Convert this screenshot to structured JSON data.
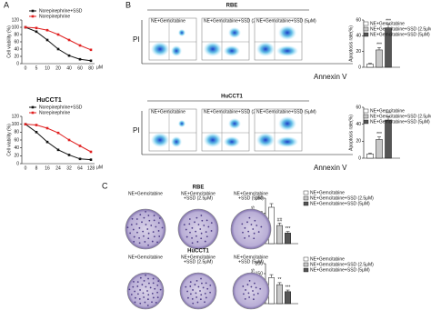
{
  "panels": [
    "A",
    "B",
    "C"
  ],
  "chart_data": [
    {
      "type": "line",
      "y_label": "Cell viability (%)",
      "x_label": "μM",
      "categories": [
        "0",
        "5",
        "10",
        "20",
        "40",
        "60",
        "80"
      ],
      "series": [
        {
          "name": "Norepinephrine+SSD",
          "color": "#111111",
          "values": [
            100,
            88,
            65,
            40,
            22,
            12,
            8
          ]
        },
        {
          "name": "Norepinephrine",
          "color": "#e02020",
          "values": [
            100,
            98,
            92,
            80,
            65,
            50,
            38
          ]
        }
      ],
      "ylim": [
        0,
        120
      ],
      "yticks": [
        0,
        20,
        40,
        60,
        80,
        100,
        120
      ],
      "legend": "top-right"
    },
    {
      "type": "line",
      "title": "HuCCT1",
      "y_label": "Cell viability (%)",
      "x_label": "μM",
      "categories": [
        "0",
        "8",
        "16",
        "24",
        "32",
        "64",
        "128"
      ],
      "series": [
        {
          "name": "Norepinephrine+SSD",
          "color": "#111111",
          "values": [
            100,
            80,
            55,
            35,
            22,
            12,
            10
          ]
        },
        {
          "name": "Norepinephrine",
          "color": "#e02020",
          "values": [
            100,
            98,
            90,
            78,
            60,
            45,
            30
          ]
        }
      ],
      "ylim": [
        0,
        120
      ],
      "yticks": [
        0,
        20,
        40,
        60,
        80,
        100,
        120
      ],
      "legend": "top-right"
    },
    {
      "type": "bar",
      "y_label": "Apoptosis rate(%)",
      "categories": [
        null
      ],
      "series": [
        {
          "name": "NE+Gemcitabine",
          "color": "#ffffff",
          "values": [
            4
          ],
          "errors": [
            1
          ]
        },
        {
          "name": "NE+Gemcitabine+SSD (2.5μM)",
          "color": "#c8c8c8",
          "values": [
            22
          ],
          "errors": [
            3
          ],
          "significance": "***"
        },
        {
          "name": "NE+Gemcitabine+SSD (5μM)",
          "color": "#555555",
          "values": [
            50
          ],
          "errors": [
            5
          ],
          "significance": "***"
        }
      ],
      "ylim": [
        0,
        60
      ],
      "yticks": [
        0,
        20,
        40,
        60
      ],
      "legend": "top-right"
    },
    {
      "type": "bar",
      "y_label": "Apoptosis rate(%)",
      "categories": [
        null
      ],
      "series": [
        {
          "name": "NE+Gemcitabine",
          "color": "#ffffff",
          "values": [
            5
          ],
          "errors": [
            1
          ]
        },
        {
          "name": "NE+Gemcitabine+SSD (2.5μM)",
          "color": "#c8c8c8",
          "values": [
            22
          ],
          "errors": [
            3
          ],
          "significance": "***"
        },
        {
          "name": "NE+Gemcitabine+SSD (5μM)",
          "color": "#555555",
          "values": [
            45
          ],
          "errors": [
            4
          ],
          "significance": "***"
        }
      ],
      "ylim": [
        0,
        60
      ],
      "yticks": [
        0,
        20,
        40,
        60
      ],
      "legend": "top-right"
    },
    {
      "type": "bar",
      "y_label": "No. of colonies",
      "categories": [
        null
      ],
      "series": [
        {
          "name": "NE+Gemcitabine",
          "color": "#ffffff",
          "values": [
            120
          ],
          "errors": [
            12
          ]
        },
        {
          "name": "NE+Gemcitabine+SSD (2.5μM)",
          "color": "#c8c8c8",
          "values": [
            60
          ],
          "errors": [
            8
          ],
          "significance": "##"
        },
        {
          "name": "NE+Gemcitabine+SSD (5μM)",
          "color": "#555555",
          "values": [
            35
          ],
          "errors": [
            5
          ],
          "significance": "***"
        }
      ],
      "ylim": [
        0,
        150
      ],
      "yticks": [
        0,
        50,
        100,
        150
      ],
      "legend": "top-right"
    },
    {
      "type": "bar",
      "y_label": "No. of colonies",
      "categories": [
        null
      ],
      "series": [
        {
          "name": "NE+Gemcitabine",
          "color": "#ffffff",
          "values": [
            130
          ],
          "errors": [
            15
          ]
        },
        {
          "name": "NE+Gemcitabine+SSD (2.5μM)",
          "color": "#c8c8c8",
          "values": [
            95
          ],
          "errors": [
            10
          ],
          "significance": "**"
        },
        {
          "name": "NE+Gemcitabine+SSD (5μM)",
          "color": "#555555",
          "values": [
            60
          ],
          "errors": [
            8
          ],
          "significance": "***"
        }
      ],
      "ylim": [
        0,
        200
      ],
      "yticks": [
        0,
        50,
        100,
        150,
        200
      ],
      "legend": "top-right"
    }
  ],
  "flow": {
    "rows": [
      "RBE",
      "HuCCT1"
    ],
    "y_label": "PI",
    "x_label": "Annexin V",
    "conditions": [
      "NE+Gemcitabine",
      "NE+Gemcitabine+SSD (2.5μM)",
      "NE+Gemcitabine+SSD (5μM)"
    ]
  },
  "colony": {
    "rows": [
      "RBE",
      "HuCCT1"
    ],
    "conditions": [
      [
        "NE+Gemcitabine"
      ],
      [
        "NE+Gemcitabine",
        "+SSD (2.5μM)"
      ],
      [
        "NE+Gemcitabine",
        "+SSD (5μM)"
      ]
    ]
  }
}
